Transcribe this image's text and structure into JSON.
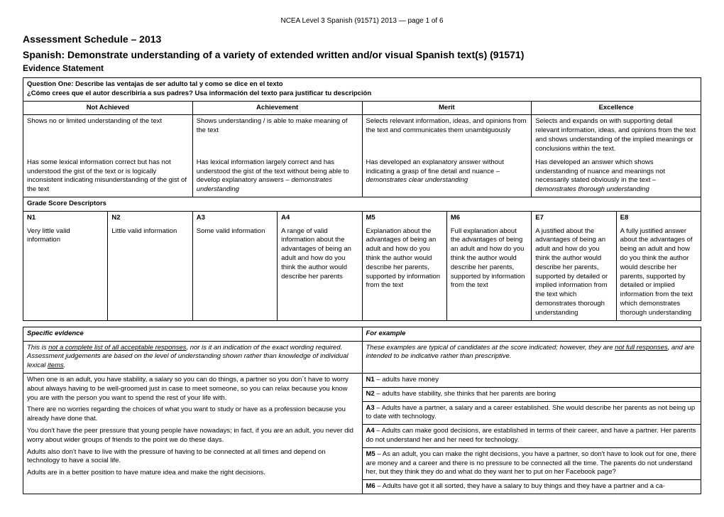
{
  "pageHeader": "NCEA Level 3 Spanish (91571) 2013 — page 1 of 6",
  "title1": "Assessment Schedule – 2013",
  "title2": "Spanish: Demonstrate understanding of a variety of extended written and/or visual Spanish text(s) (91571)",
  "title3": "Evidence Statement",
  "question": {
    "line1": "Question One: Describe las ventajas de ser adulto tal y como se dice en el texto",
    "line2": "¿Cómo crees que el autor describiría a sus padres? Usa información del texto para justificar tu descripción"
  },
  "levels": {
    "headers": [
      "Not Achieved",
      "Achievement",
      "Merit",
      "Excellence"
    ],
    "row1": [
      "Shows no or limited understanding of the text",
      "Shows understanding / is able to make meaning of the text",
      "Selects relevant information, ideas, and opinions from the text and communicates them unambiguously",
      "Selects and expands on with supporting detail relevant information, ideas, and opinions from the text and shows understanding of the implied meanings or conclusions within the text."
    ],
    "row2": [
      "Has some lexical information correct but has not understood the gist of the text or is logically inconsistent indicating misunderstanding of the gist of the text",
      "Has lexical information largely correct and has understood the gist of the text without being able to develop explanatory answers – demonstrates understanding",
      "Has developed an explanatory answer without indicating a grasp of fine detail and nuance – demonstrates clear understanding",
      "Has developed an answer which shows understanding of nuance and meanings not necessarily stated obviously in the text – demonstrates thorough understanding"
    ]
  },
  "gsdLabel": "Grade Score Descriptors",
  "gsd": {
    "headers": [
      "N1",
      "N2",
      "A3",
      "A4",
      "M5",
      "M6",
      "E7",
      "E8"
    ],
    "cells": [
      "Very little valid information",
      "Little valid information",
      "Some valid information",
      "A range of valid information about the advantages of being an adult and how do you think the author would describe her parents",
      "Explanation about the advantages of being an adult and how do you think the author would describe her parents, supported by information from the text",
      "Full explanation about the advantages of being an adult and how do you think the author would describe her parents, supported by information from the text",
      "A justified about the advantages of being an adult and how do you think the author would describe her parents, supported by detailed or implied information from the text which demonstrates thorough understanding",
      "A fully justified answer about the advantages of being an adult and how do you think the author would describe her parents, supported by detailed or implied information from the text which demonstrates thorough understanding"
    ]
  },
  "evidence": {
    "headLeft": "Specific evidence",
    "headRight": "For example",
    "introLeft": {
      "pre": "This is ",
      "u1": "not a complete list of all acceptable responses",
      "mid": ", nor is it an indication of the exact wording required. Assessment judgements are based on the level of understanding shown rather than knowledge of individual lexical ",
      "u2": "items",
      "post": "."
    },
    "introRight": {
      "pre": "These examples are typical of candidates at the score indicated; however, they are ",
      "u1": "not full responses",
      "mid": ", and are intended to be indicative rather than prescriptive."
    },
    "leftParas": [
      "When one is an adult, you have stability, a salary so you can do things, a partner so you don´t have to worry about always having to be well-groomed just in case to meet someone, so you can relax because you know you are with the person you want to spend the rest of your life with.",
      "There are no worries regarding the choices of what you want to study or have as a profession because you already have done that.",
      "You don't have the peer pressure that young people have nowadays; in fact, if you are an adult, you never did worry about wider groups of friends to the point we do these days.",
      "Adults also don't have to live with the pressure of having to be connected at all times and depend on technology to have a social life.",
      "Adults are in a better position to have mature idea and make the right decisions."
    ],
    "rightRows": [
      {
        "b": "N1",
        "t": " – adults have money"
      },
      {
        "b": "N2",
        "t": " – adults have stability, she thinks that her parents are boring"
      },
      {
        "b": "A3",
        "t": " – Adults have a partner, a salary and a career established. She would describe her parents as not being up to date with technology."
      },
      {
        "b": "A4",
        "t": " – Adults can make good decisions, are established in terms of their career, and have a partner. Her parents do not understand her and her need for technology."
      },
      {
        "b": "M5",
        "t": " – As an adult, you can make the right decisions, you have a partner, so don't have to look out for one, there are money and a career and there is no pressure to be connected all the time. The parents do not understand her, but they think they do and what do they want her to put on her Facebook page?"
      },
      {
        "b": "M6",
        "t": " – Adults have got it all sorted, they have a salary to buy things and they have a partner and a ca-"
      }
    ]
  }
}
